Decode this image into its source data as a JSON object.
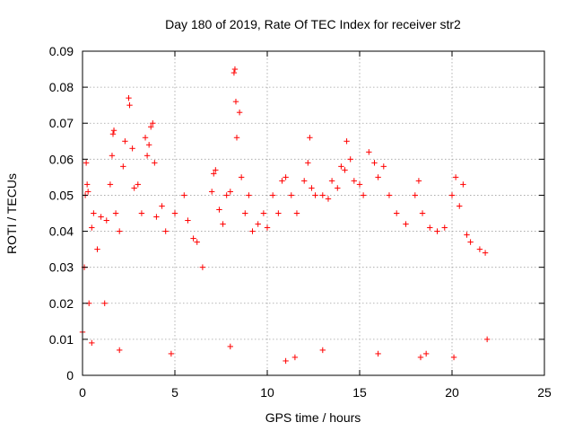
{
  "chart_data": {
    "type": "scatter",
    "title": "Day 180 of 2019, Rate Of TEC Index for receiver str2",
    "xlabel": "GPS time / hours",
    "ylabel": "ROTI / TECUs",
    "xlim": [
      0,
      25
    ],
    "ylim": [
      0,
      0.09
    ],
    "x_ticks": [
      0,
      5,
      10,
      15,
      20,
      25
    ],
    "y_ticks": [
      0,
      0.01,
      0.02,
      0.03,
      0.04,
      0.05,
      0.06,
      0.07,
      0.08,
      0.09
    ],
    "x_tick_labels": [
      "0",
      "5",
      "10",
      "15",
      "20",
      "25"
    ],
    "y_tick_labels": [
      "0",
      "0.01",
      "0.02",
      "0.03",
      "0.04",
      "0.05",
      "0.06",
      "0.07",
      "0.08",
      "0.09"
    ],
    "grid": true,
    "marker": "+",
    "color": "#ff0000",
    "data_gaps_hours": [
      [
        6.5,
        7.0
      ],
      [
        9.0,
        9.1
      ]
    ],
    "series": [
      {
        "name": "ROTI",
        "points": [
          [
            0.0,
            0.012
          ],
          [
            0.1,
            0.03
          ],
          [
            0.15,
            0.05
          ],
          [
            0.2,
            0.059
          ],
          [
            0.25,
            0.053
          ],
          [
            0.3,
            0.051
          ],
          [
            0.35,
            0.02
          ],
          [
            0.5,
            0.041
          ],
          [
            0.6,
            0.045
          ],
          [
            0.8,
            0.035
          ],
          [
            1.0,
            0.044
          ],
          [
            1.2,
            0.02
          ],
          [
            1.3,
            0.043
          ],
          [
            1.5,
            0.053
          ],
          [
            1.6,
            0.061
          ],
          [
            1.65,
            0.067
          ],
          [
            1.7,
            0.068
          ],
          [
            1.8,
            0.045
          ],
          [
            2.0,
            0.04
          ],
          [
            2.2,
            0.058
          ],
          [
            2.3,
            0.065
          ],
          [
            2.5,
            0.077
          ],
          [
            2.55,
            0.075
          ],
          [
            2.7,
            0.063
          ],
          [
            2.8,
            0.052
          ],
          [
            3.0,
            0.053
          ],
          [
            3.2,
            0.045
          ],
          [
            3.4,
            0.066
          ],
          [
            3.5,
            0.061
          ],
          [
            3.6,
            0.064
          ],
          [
            3.7,
            0.069
          ],
          [
            3.8,
            0.07
          ],
          [
            3.9,
            0.059
          ],
          [
            4.0,
            0.044
          ],
          [
            4.3,
            0.047
          ],
          [
            4.5,
            0.04
          ],
          [
            5.0,
            0.045
          ],
          [
            5.5,
            0.05
          ],
          [
            5.7,
            0.043
          ],
          [
            6.0,
            0.038
          ],
          [
            6.2,
            0.037
          ],
          [
            6.5,
            0.03
          ],
          [
            7.0,
            0.051
          ],
          [
            7.1,
            0.056
          ],
          [
            7.2,
            0.057
          ],
          [
            7.4,
            0.046
          ],
          [
            7.6,
            0.042
          ],
          [
            7.8,
            0.05
          ],
          [
            8.0,
            0.051
          ],
          [
            8.2,
            0.084
          ],
          [
            8.25,
            0.085
          ],
          [
            8.3,
            0.076
          ],
          [
            8.35,
            0.066
          ],
          [
            8.5,
            0.073
          ],
          [
            8.6,
            0.055
          ],
          [
            8.8,
            0.045
          ],
          [
            9.0,
            0.05
          ],
          [
            9.2,
            0.04
          ],
          [
            9.5,
            0.042
          ],
          [
            9.8,
            0.045
          ],
          [
            10.0,
            0.041
          ],
          [
            10.3,
            0.05
          ],
          [
            10.6,
            0.045
          ],
          [
            10.8,
            0.054
          ],
          [
            11.0,
            0.055
          ],
          [
            11.3,
            0.05
          ],
          [
            11.6,
            0.045
          ],
          [
            12.0,
            0.054
          ],
          [
            12.2,
            0.059
          ],
          [
            12.3,
            0.066
          ],
          [
            12.4,
            0.052
          ],
          [
            12.6,
            0.05
          ],
          [
            13.0,
            0.05
          ],
          [
            13.3,
            0.049
          ],
          [
            13.5,
            0.054
          ],
          [
            13.8,
            0.052
          ],
          [
            14.0,
            0.058
          ],
          [
            14.2,
            0.057
          ],
          [
            14.3,
            0.065
          ],
          [
            14.5,
            0.06
          ],
          [
            14.7,
            0.054
          ],
          [
            15.0,
            0.053
          ],
          [
            15.2,
            0.05
          ],
          [
            15.5,
            0.062
          ],
          [
            15.8,
            0.059
          ],
          [
            16.0,
            0.055
          ],
          [
            16.3,
            0.058
          ],
          [
            16.6,
            0.05
          ],
          [
            17.0,
            0.045
          ],
          [
            17.5,
            0.042
          ],
          [
            18.0,
            0.05
          ],
          [
            18.2,
            0.054
          ],
          [
            18.4,
            0.045
          ],
          [
            18.8,
            0.041
          ],
          [
            19.2,
            0.04
          ],
          [
            19.6,
            0.041
          ],
          [
            20.0,
            0.05
          ],
          [
            20.2,
            0.055
          ],
          [
            20.4,
            0.047
          ],
          [
            20.6,
            0.053
          ],
          [
            20.8,
            0.039
          ],
          [
            21.0,
            0.037
          ],
          [
            21.5,
            0.035
          ],
          [
            21.8,
            0.034
          ],
          [
            0.5,
            0.009
          ],
          [
            2.0,
            0.007
          ],
          [
            4.8,
            0.006
          ],
          [
            8.0,
            0.008
          ],
          [
            11.0,
            0.004
          ],
          [
            11.5,
            0.005
          ],
          [
            13.0,
            0.007
          ],
          [
            16.0,
            0.006
          ],
          [
            18.3,
            0.005
          ],
          [
            18.6,
            0.006
          ],
          [
            20.1,
            0.005
          ],
          [
            21.9,
            0.01
          ]
        ]
      }
    ]
  }
}
